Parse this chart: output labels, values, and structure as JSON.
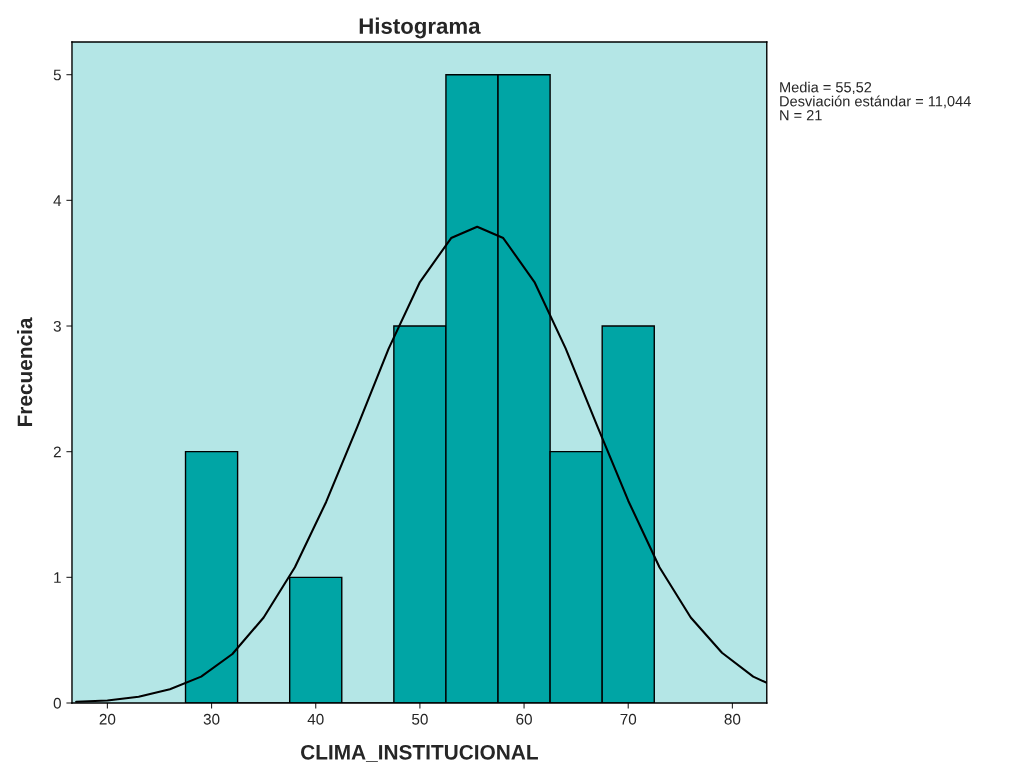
{
  "chart_data": {
    "type": "histogram",
    "title": "Histograma",
    "xlabel": "CLIMA_INSTITUCIONAL",
    "ylabel": "Frecuencia",
    "bins": [
      27.5,
      32.5,
      37.5,
      42.5,
      47.5,
      52.5,
      57.5,
      62.5,
      67.5,
      72.5
    ],
    "values": [
      2,
      0,
      1,
      0,
      3,
      5,
      5,
      2,
      3
    ],
    "color": "#00a5a5",
    "series": [
      {
        "type": "line",
        "color": "#000000",
        "x": [
          17,
          20,
          23,
          26,
          29,
          32,
          35,
          38,
          41,
          44,
          47,
          50,
          53,
          55.5,
          58,
          61,
          64,
          67,
          70,
          73,
          76,
          79,
          82,
          83.3
        ],
        "values": [
          0.01,
          0.02,
          0.05,
          0.11,
          0.21,
          0.39,
          0.68,
          1.08,
          1.6,
          2.2,
          2.82,
          3.35,
          3.7,
          3.79,
          3.7,
          3.35,
          2.82,
          2.21,
          1.61,
          1.08,
          0.68,
          0.4,
          0.21,
          0.16
        ]
      }
    ],
    "xlim": [
      16.6,
      83.3
    ],
    "xticks": [
      20,
      30,
      40,
      50,
      60,
      70,
      80
    ],
    "ylim": [
      0,
      5.26
    ],
    "yticks": [
      0,
      1,
      2,
      3,
      4,
      5
    ],
    "grid": false,
    "legend": false,
    "annotations": [
      "Media = 55,52",
      "Desviación estándar = 11,044",
      "N = 21"
    ]
  }
}
